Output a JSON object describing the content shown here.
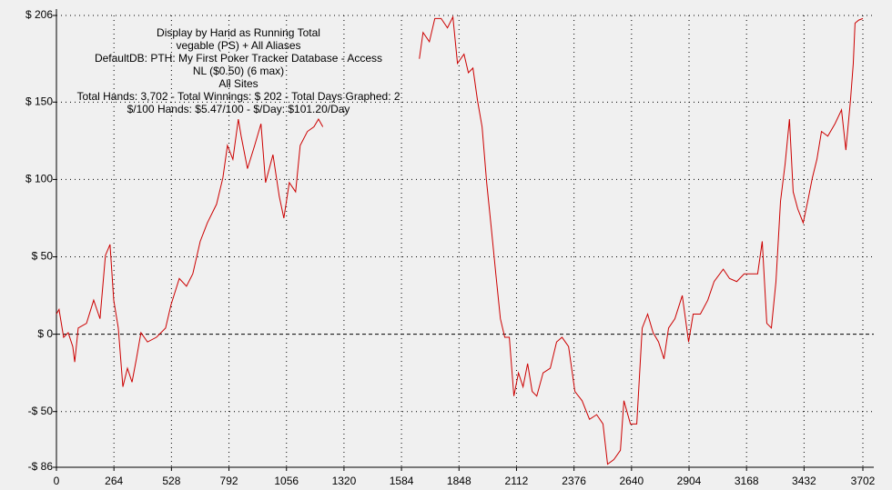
{
  "chart_data": {
    "type": "line",
    "title_lines": [
      "Display by Hand as Running Total",
      "vegable (PS) + All Aliases",
      "DefaultDB: PTH: My First Poker Tracker Database - Access",
      "NL ($0.50) (6 max)",
      "All Sites",
      "Total Hands: 3,702 - Total Winnings: $ 202 - Total Days Graphed: 2",
      "$/100 Hands: $5.47/100 - $/Day: $101.20/Day"
    ],
    "color": "#cc0000",
    "grid": true,
    "xlim": [
      0,
      3702
    ],
    "xticks": [
      0,
      264,
      528,
      792,
      1056,
      1320,
      1584,
      1848,
      2112,
      2376,
      2640,
      2904,
      3168,
      3432,
      3702
    ],
    "ylim": [
      -86,
      206
    ],
    "yticks": [
      {
        "value": -86,
        "label": "-$ 86"
      },
      {
        "value": -50,
        "label": "-$ 50"
      },
      {
        "value": 0,
        "label": "$ 0"
      },
      {
        "value": 50,
        "label": "$ 50"
      },
      {
        "value": 100,
        "label": "$ 100"
      },
      {
        "value": 150,
        "label": "$ 150"
      },
      {
        "value": 206,
        "label": "$ 206"
      }
    ],
    "x": [
      0,
      12,
      33,
      54,
      75,
      84,
      100,
      138,
      171,
      200,
      225,
      246,
      263,
      284,
      305,
      326,
      347,
      367,
      388,
      418,
      459,
      501,
      526,
      564,
      597,
      626,
      660,
      693,
      735,
      764,
      785,
      810,
      835,
      848,
      877,
      910,
      939,
      960,
      994,
      1023,
      1044,
      1069,
      1098,
      1119,
      1152,
      1182,
      1203,
      1223,
      1440,
      1666,
      1683,
      1712,
      1737,
      1766,
      1795,
      1820,
      1841,
      1871,
      1891,
      1912,
      1933,
      1954,
      1975,
      1996,
      2017,
      2038,
      2058,
      2079,
      2100,
      2121,
      2142,
      2163,
      2184,
      2205,
      2234,
      2267,
      2296,
      2321,
      2351,
      2380,
      2413,
      2447,
      2480,
      2509,
      2530,
      2559,
      2589,
      2605,
      2635,
      2664,
      2689,
      2714,
      2739,
      2764,
      2789,
      2810,
      2839,
      2873,
      2902,
      2923,
      2956,
      2990,
      3019,
      3061,
      3090,
      3123,
      3157,
      3186,
      3219,
      3240,
      3261,
      3282,
      3303,
      3324,
      3345,
      3365,
      3382,
      3403,
      3428,
      3449,
      3470,
      3491,
      3512,
      3541,
      3574,
      3604,
      3624,
      3645,
      3658,
      3666,
      3683,
      3702
    ],
    "values": [
      13,
      16,
      -2,
      1,
      -8,
      -18,
      4,
      7,
      22,
      10,
      51,
      58,
      22,
      4,
      -34,
      -22,
      -31,
      -16,
      1,
      -5,
      -2,
      4,
      19,
      36,
      31,
      39,
      60,
      72,
      84,
      101,
      122,
      113,
      139,
      128,
      107,
      122,
      136,
      98,
      116,
      89,
      75,
      98,
      92,
      122,
      131,
      134,
      139,
      134,
      null,
      178,
      195,
      189,
      204,
      204,
      198,
      205,
      175,
      181,
      169,
      172,
      151,
      134,
      98,
      69,
      39,
      10,
      -2,
      -2,
      -40,
      -25,
      -34,
      -19,
      -37,
      -40,
      -25,
      -22,
      -5,
      -2,
      -8,
      -37,
      -43,
      -55,
      -52,
      -58,
      -84,
      -81,
      -75,
      -43,
      -58,
      -58,
      4,
      13,
      1,
      -5,
      -16,
      4,
      10,
      25,
      -5,
      13,
      13,
      22,
      34,
      42,
      36,
      34,
      39,
      39,
      39,
      60,
      7,
      4,
      34,
      86,
      110,
      139,
      92,
      81,
      72,
      86,
      101,
      113,
      131,
      128,
      136,
      145,
      119,
      151,
      175,
      201,
      203,
      204
    ]
  }
}
